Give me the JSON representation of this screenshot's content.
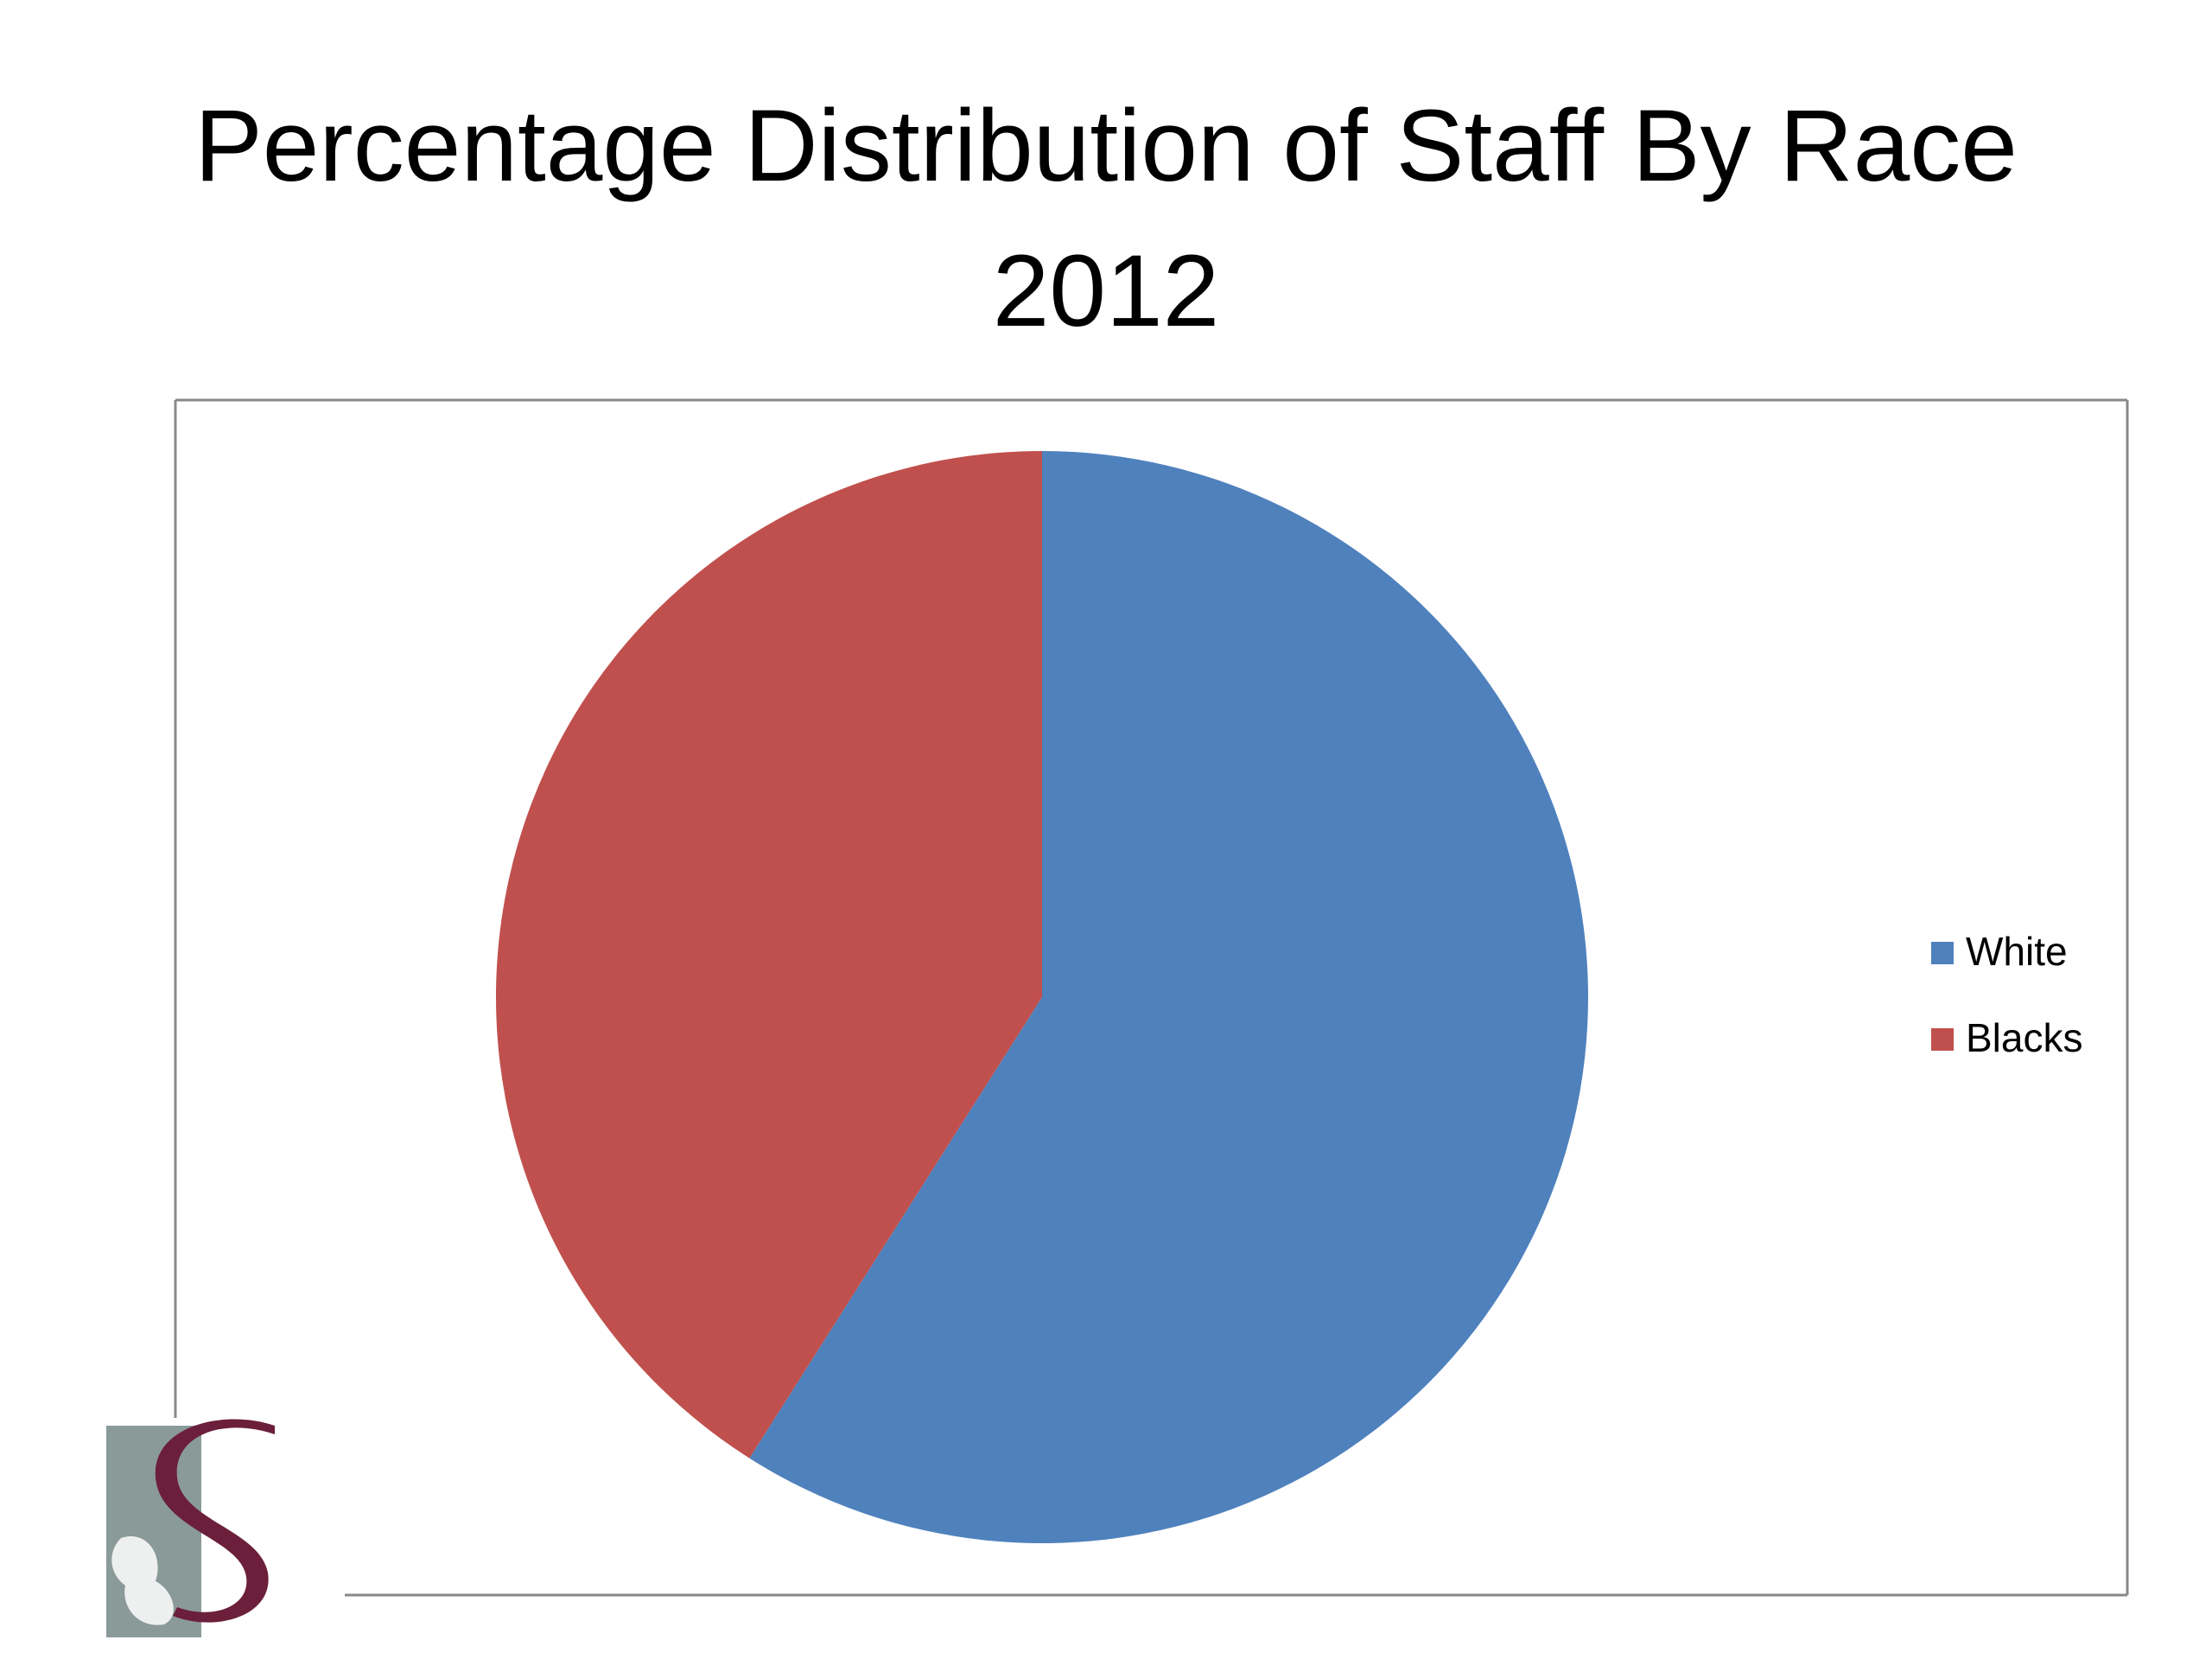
{
  "chart_data": {
    "type": "pie",
    "title": "Percentage Distribution of Staff By Race 2012",
    "categories": [
      "White",
      "Blacks"
    ],
    "values": [
      59,
      41
    ],
    "colors": [
      "#4f81bd",
      "#c0504d"
    ],
    "legend": "right"
  }
}
